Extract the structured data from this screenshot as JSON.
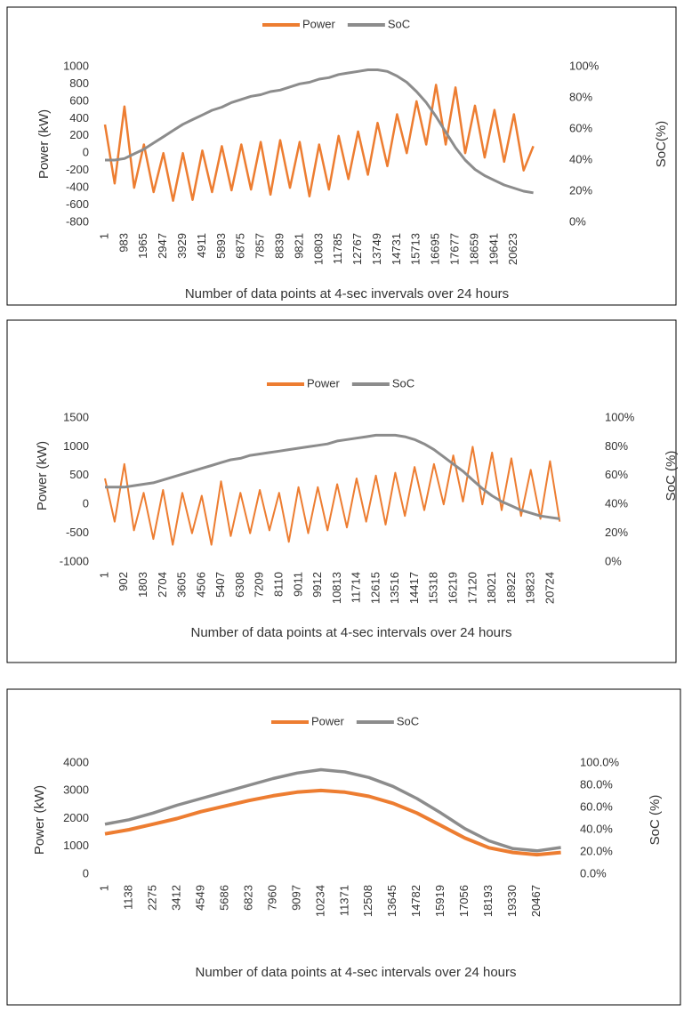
{
  "chart_data": [
    {
      "type": "line",
      "legend": "top",
      "x_label": "Number of data points at 4-sec invervals over 24 hours",
      "y_label": "Power (kW)",
      "y2_label": "SoC(%)",
      "x": [
        1,
        492,
        983,
        1474,
        1965,
        2456,
        2947,
        3438,
        3929,
        4420,
        4911,
        5402,
        5893,
        6384,
        6875,
        7366,
        7857,
        8348,
        8839,
        9330,
        9821,
        10312,
        10803,
        11294,
        11785,
        12276,
        12767,
        13258,
        13749,
        14240,
        14731,
        15222,
        15713,
        16204,
        16695,
        17186,
        17677,
        18168,
        18659,
        19150,
        19641,
        20132,
        20623,
        21114,
        21605
      ],
      "xlim": [
        1,
        21845
      ],
      "xticks": [
        1,
        983,
        1965,
        2947,
        3929,
        4911,
        5893,
        6875,
        7857,
        8839,
        9821,
        10803,
        11785,
        12767,
        13749,
        14731,
        15713,
        16695,
        17677,
        18659,
        19641,
        20623
      ],
      "ylim": [
        -800,
        1000
      ],
      "yticks": [
        -800,
        -600,
        -400,
        -200,
        0,
        200,
        400,
        600,
        800,
        1000
      ],
      "y2lim": [
        0,
        100
      ],
      "y2ticks": [
        {
          "value": 0,
          "label": "0%"
        },
        {
          "value": 20,
          "label": "20%"
        },
        {
          "value": 40,
          "label": "40%"
        },
        {
          "value": 60,
          "label": "60%"
        },
        {
          "value": 80,
          "label": "80%"
        },
        {
          "value": 100,
          "label": "100%"
        }
      ],
      "series": [
        {
          "name": "Power",
          "color": "#ED7D31",
          "values": [
            330,
            -350,
            540,
            -400,
            100,
            -450,
            0,
            -550,
            0,
            -540,
            30,
            -450,
            80,
            -430,
            100,
            -420,
            130,
            -480,
            150,
            -400,
            130,
            -500,
            100,
            -420,
            200,
            -300,
            250,
            -250,
            350,
            -150,
            450,
            0,
            600,
            100,
            790,
            100,
            760,
            0,
            550,
            -50,
            500,
            -100,
            450,
            -200,
            80
          ]
        },
        {
          "name": "SoC",
          "color": "#8C8C8C",
          "axis": "y2",
          "values": [
            40,
            40,
            41,
            44,
            47,
            51,
            55,
            59,
            63,
            66,
            69,
            72,
            74,
            77,
            79,
            81,
            82,
            84,
            85,
            87,
            89,
            90,
            92,
            93,
            95,
            96,
            97,
            98,
            98,
            97,
            94,
            90,
            84,
            77,
            68,
            58,
            48,
            40,
            34,
            30,
            27,
            24,
            22,
            20,
            19
          ]
        }
      ]
    },
    {
      "type": "line",
      "legend": "top",
      "x_label": "Number of data points at 4-sec intervals over 24 hours",
      "y_label": "Power (kW)",
      "y2_label": "SoC (%)",
      "x": [
        1,
        451,
        901,
        1351,
        1801,
        2251,
        2701,
        3151,
        3601,
        4051,
        4501,
        4951,
        5401,
        5851,
        6301,
        6751,
        7201,
        7651,
        8101,
        8551,
        9001,
        9451,
        9901,
        10351,
        10801,
        11251,
        11701,
        12151,
        12601,
        13051,
        13501,
        13951,
        14401,
        14851,
        15301,
        15751,
        16201,
        16651,
        17101,
        17551,
        18001,
        18451,
        18901,
        19351,
        19801,
        20251,
        20701,
        21151
      ],
      "xlim": [
        1,
        21800
      ],
      "xticks": [
        1,
        902,
        1803,
        2704,
        3605,
        4506,
        5407,
        6308,
        7209,
        8110,
        9011,
        9912,
        10813,
        11714,
        12615,
        13516,
        14417,
        15318,
        16219,
        17120,
        18021,
        18922,
        19823,
        20724
      ],
      "ylim": [
        -1000,
        1500
      ],
      "yticks": [
        -1000,
        -500,
        0,
        500,
        1000,
        1500
      ],
      "y2lim": [
        0,
        100
      ],
      "y2ticks": [
        {
          "value": 0,
          "label": "0%"
        },
        {
          "value": 20,
          "label": "20%"
        },
        {
          "value": 40,
          "label": "40%"
        },
        {
          "value": 60,
          "label": "60%"
        },
        {
          "value": 80,
          "label": "80%"
        },
        {
          "value": 100,
          "label": "100%"
        }
      ],
      "series": [
        {
          "name": "Power",
          "color": "#ED7D31",
          "values": [
            450,
            -300,
            700,
            -450,
            200,
            -600,
            250,
            -700,
            200,
            -500,
            150,
            -700,
            400,
            -550,
            200,
            -500,
            250,
            -450,
            200,
            -650,
            300,
            -500,
            300,
            -450,
            350,
            -400,
            450,
            -300,
            500,
            -350,
            550,
            -200,
            650,
            -100,
            700,
            0,
            850,
            50,
            1000,
            0,
            900,
            -100,
            800,
            -200,
            600,
            -250,
            750,
            -300
          ]
        },
        {
          "name": "SoC",
          "color": "#8C8C8C",
          "axis": "y2",
          "values": [
            52,
            52,
            52,
            53,
            54,
            55,
            57,
            59,
            61,
            63,
            65,
            67,
            69,
            71,
            72,
            74,
            75,
            76,
            77,
            78,
            79,
            80,
            81,
            82,
            84,
            85,
            86,
            87,
            88,
            88,
            88,
            87,
            85,
            82,
            78,
            73,
            68,
            63,
            57,
            51,
            46,
            42,
            39,
            36,
            34,
            32,
            31,
            30
          ]
        }
      ]
    },
    {
      "type": "line",
      "legend": "top",
      "x_label": "Number of data points at 4-sec intervals over 24 hours",
      "y_label": "Power (kW)",
      "y2_label": "SoC (%)",
      "x": [
        1,
        1138,
        2275,
        3412,
        4549,
        5686,
        6823,
        7960,
        9097,
        10234,
        11371,
        12508,
        13645,
        14782,
        15919,
        17056,
        18193,
        19330,
        20467,
        21600
      ],
      "xlim": [
        1,
        21660
      ],
      "xticks": [
        1,
        1138,
        2275,
        3412,
        4549,
        5686,
        6823,
        7960,
        9097,
        10234,
        11371,
        12508,
        13645,
        14782,
        15919,
        17056,
        18193,
        19330,
        20467
      ],
      "ylim": [
        0,
        4000
      ],
      "yticks": [
        0,
        1000,
        2000,
        3000,
        4000
      ],
      "y2lim": [
        0,
        100
      ],
      "y2ticks": [
        {
          "value": 0,
          "label": "0.0%"
        },
        {
          "value": 20,
          "label": "20.0%"
        },
        {
          "value": 40,
          "label": "40.0%"
        },
        {
          "value": 60,
          "label": "60.0%"
        },
        {
          "value": 80,
          "label": "80.0%"
        },
        {
          "value": 100,
          "label": "100.0%"
        }
      ],
      "series": [
        {
          "name": "Power",
          "color": "#ED7D31",
          "values": [
            1450,
            1600,
            1800,
            2000,
            2250,
            2450,
            2650,
            2820,
            2950,
            3010,
            2950,
            2800,
            2550,
            2200,
            1750,
            1300,
            950,
            780,
            700,
            780
          ]
        },
        {
          "name": "SoC",
          "color": "#8C8C8C",
          "axis": "y2",
          "values": [
            45,
            49,
            55,
            62,
            68,
            74,
            80,
            86,
            91,
            94,
            92,
            87,
            79,
            68,
            55,
            41,
            30,
            23,
            21,
            24
          ]
        }
      ]
    }
  ]
}
